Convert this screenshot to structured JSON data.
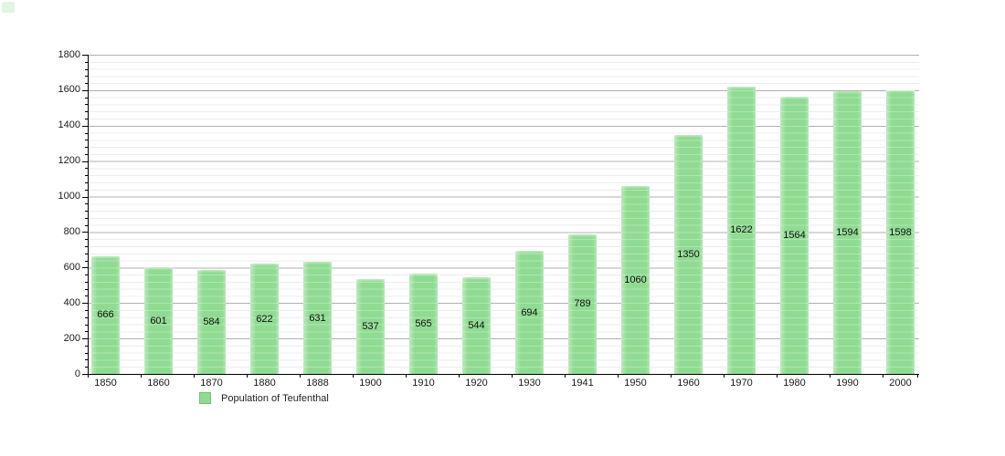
{
  "window": {
    "background_color": "#ffffff"
  },
  "decor": {
    "corner_square_color": "rgba(146,219,148,0.28)"
  },
  "chart_data": {
    "type": "bar",
    "title": "",
    "xlabel": "",
    "ylabel": "",
    "categories": [
      "1850",
      "1860",
      "1870",
      "1880",
      "1888",
      "1900",
      "1910",
      "1920",
      "1930",
      "1941",
      "1950",
      "1960",
      "1970",
      "1980",
      "1990",
      "2000"
    ],
    "values": [
      666,
      601,
      584,
      622,
      631,
      537,
      565,
      544,
      694,
      789,
      1060,
      1350,
      1622,
      1564,
      1594,
      1598
    ],
    "series_name": "Population of Teufenthal",
    "ylim": [
      0,
      1800
    ],
    "y_major_step": 200,
    "y_minor_step": 40,
    "y_ticks": [
      "0",
      "200",
      "400",
      "600",
      "800",
      "1000",
      "1200",
      "1400",
      "1600",
      "1800"
    ],
    "grid": "on",
    "bar_value_labels": "centered-inside-bars",
    "legend_position": "bottom-left",
    "colors": {
      "bar_fill": "#90db92",
      "grid_major": "#b0b0b0",
      "grid_minor": "#ececec",
      "axis": "#000000",
      "tick_text": "#1a1a1a",
      "value_label_text": "#111111"
    }
  },
  "legend": {
    "label": "Population of Teufenthal",
    "swatch_color": "#90db92"
  }
}
